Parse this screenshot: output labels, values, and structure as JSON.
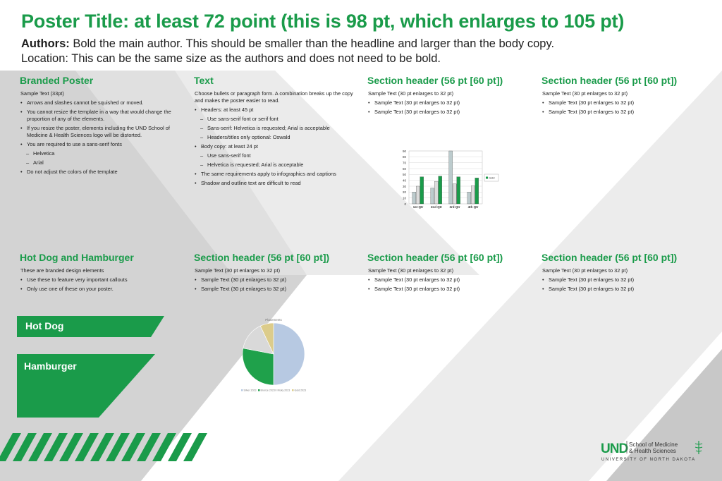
{
  "title": "Poster Title: at least 72 point (this is 98 pt, which enlarges to 105 pt)",
  "authors_label": "Authors:",
  "authors_text": " Bold the main author. This should be smaller than the headline and larger than the body copy.",
  "location_text": "Location: This can be the same size as the authors and does not need to be bold.",
  "colors": {
    "brand_green": "#1a9b4a",
    "grey_shape": "#cfcfcf",
    "bar_light": "#b9c9cc"
  },
  "sections": {
    "branded": {
      "header": "Branded Poster",
      "intro": "Sample Text (33pt)",
      "items": [
        {
          "text": "Arrows and slashes cannot be squished or moved.",
          "level": 1
        },
        {
          "text": "You cannot resize the template in a way that would change the proportion of any of the elements.",
          "level": 1
        },
        {
          "text": "If you resize the poster, elements including the UND School of Medicine & Health Sciences logo will be distorted.",
          "level": 1
        },
        {
          "text": "You are required to use a sans-serif fonts",
          "level": 1
        },
        {
          "text": "Helvetica",
          "level": 2
        },
        {
          "text": "Arial",
          "level": 2
        },
        {
          "text": "Do not adjust the colors of the template",
          "level": 1
        }
      ]
    },
    "text": {
      "header": "Text",
      "intro": "Choose bullets or paragraph form. A combination breaks up the copy and makes the poster easier to read.",
      "items": [
        {
          "text": "Headers: at least 45 pt",
          "level": 1
        },
        {
          "text": "Use sans-serif font or serif font",
          "level": 2
        },
        {
          "text": "Sans-serif: Helvetica is requested; Arial is acceptable",
          "level": 2
        },
        {
          "text": "Headers/titles only optional: Oswald",
          "level": 2
        },
        {
          "text": "Body copy: at least 24 pt",
          "level": 1
        },
        {
          "text": "Use sans-serif font",
          "level": 2
        },
        {
          "text": "Helvetica is requested; Arial is acceptable",
          "level": 2
        },
        {
          "text": "The same requirements apply to infographics and captions",
          "level": 1
        },
        {
          "text": "Shadow and outline text are difficult to read",
          "level": 1
        }
      ]
    },
    "sec3": {
      "header": "Section header (56 pt [60 pt])",
      "intro": "Sample Text (30 pt enlarges to 32 pt)",
      "items": [
        {
          "text": "Sample Text (30 pt enlarges to 32 pt)",
          "level": 1
        },
        {
          "text": "Sample Text (30 pt enlarges to 32 pt)",
          "level": 1
        }
      ]
    },
    "sec4": {
      "header": "Section header (56 pt [60 pt])",
      "intro": "Sample Text (30 pt enlarges to 32 pt)",
      "items": [
        {
          "text": "Sample Text (30 pt enlarges to 32 pt)",
          "level": 1
        },
        {
          "text": "Sample Text (30 pt enlarges to 32 pt)",
          "level": 1
        }
      ]
    },
    "hotdog": {
      "header": "Hot Dog and Hamburger",
      "intro": "These are branded design elements",
      "items": [
        {
          "text": "Use these to feature very important callouts",
          "level": 1
        },
        {
          "text": "Only use one of these on your poster.",
          "level": 1
        }
      ]
    },
    "sec6": {
      "header": "Section header (56 pt [60 pt])",
      "intro": "Sample Text (30 pt enlarges to 32 pt)",
      "items": [
        {
          "text": "Sample Text (30 pt enlarges to 32 pt)",
          "level": 1
        },
        {
          "text": "Sample Text (30 pt enlarges to 32 pt)",
          "level": 1
        }
      ]
    },
    "sec7": {
      "header": "Section header (56 pt [60 pt])",
      "intro": "Sample Text (30 pt enlarges to 32 pt)",
      "items": [
        {
          "text": "Sample Text (30 pt enlarges to 32 pt)",
          "level": 1
        },
        {
          "text": "Sample Text (30 pt enlarges to 32 pt)",
          "level": 1
        }
      ]
    },
    "sec8": {
      "header": "Section header (56 pt [60 pt])",
      "intro": "Sample Text (30 pt enlarges to 32 pt)",
      "items": [
        {
          "text": "Sample Text (30 pt enlarges to 32 pt)",
          "level": 1
        },
        {
          "text": "Sample Text (30 pt enlarges to 32 pt)",
          "level": 1
        }
      ]
    }
  },
  "callouts": {
    "hotdog": "Hot Dog",
    "hamburger": "Hamburger"
  },
  "logo": {
    "mark": "UND",
    "line1": "School of Medicine",
    "line2": "& Health Sciences",
    "line3": "UNIVERSITY OF NORTH DAKOTA"
  },
  "chart_data": [
    {
      "type": "bar",
      "categories": [
        "1st Qtr",
        "2nd Qtr",
        "3rd Qtr",
        "4th Qtr"
      ],
      "series": [
        {
          "name": "",
          "values": [
            20,
            27,
            90,
            20
          ],
          "color": "#bccbcd"
        },
        {
          "name": "",
          "values": [
            30,
            38,
            34,
            31
          ],
          "color": "#dcdcdc"
        },
        {
          "name": "Gold",
          "values": [
            46,
            47,
            46,
            44
          ],
          "color": "#1a9b4a"
        }
      ],
      "ylim": [
        0,
        90
      ],
      "yticks": [
        0,
        10,
        20,
        30,
        40,
        50,
        60,
        70,
        80,
        90
      ],
      "legend": [
        "Gold"
      ],
      "legend_position": "right"
    },
    {
      "type": "pie",
      "title": "Placements",
      "slices": [
        {
          "label": "Silver 2023",
          "value": 50,
          "color": "#b7c9e2"
        },
        {
          "label": "Bronze 2023",
          "value": 28,
          "color": "#1fa14b"
        },
        {
          "label": "Nicky 2023",
          "value": 15,
          "color": "#d9d9d9"
        },
        {
          "label": "Gold 2023",
          "value": 7,
          "color": "#dccc8b"
        }
      ]
    }
  ]
}
